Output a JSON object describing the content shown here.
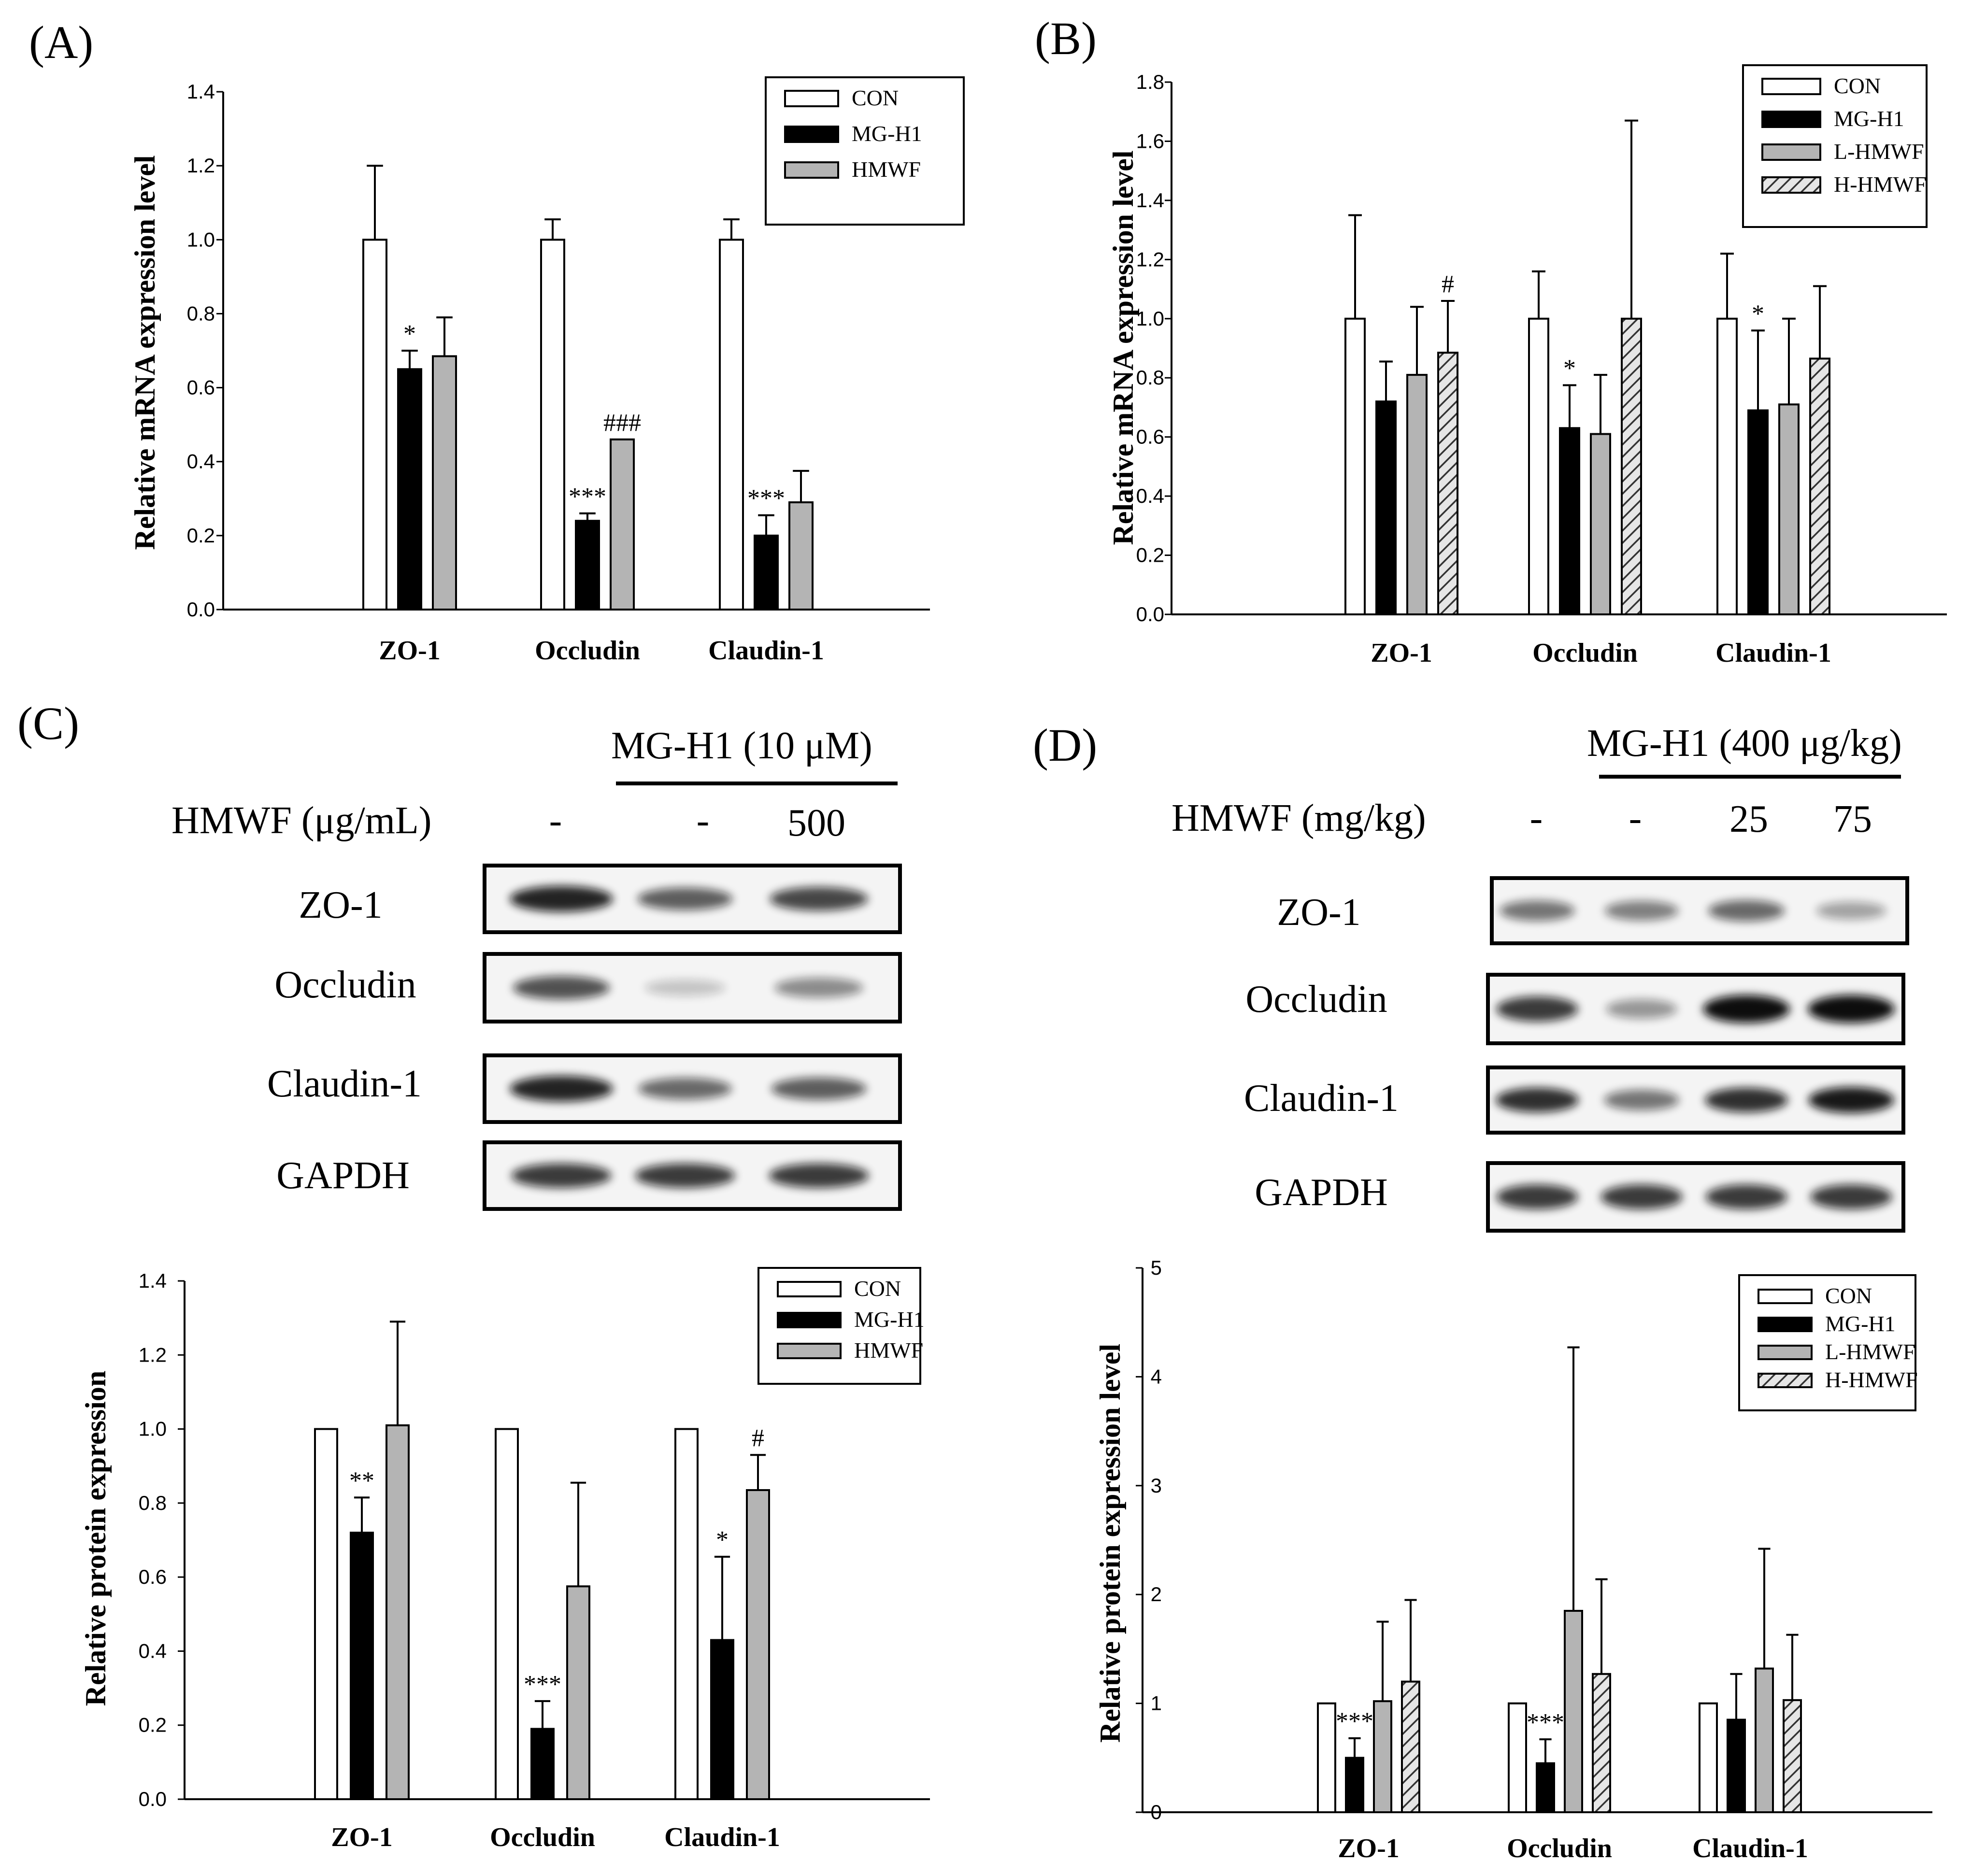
{
  "chart_data": [
    {
      "panel": "(A)",
      "type": "bar",
      "title": "",
      "xlabel": "",
      "ylabel": "Relative mRNA expression level",
      "ylim": [
        0,
        1.4
      ],
      "yticks": [
        "0.0",
        "0.2",
        "0.4",
        "0.6",
        "0.8",
        "1.0",
        "1.2",
        "1.4"
      ],
      "categories": [
        "ZO-1",
        "Occludin",
        "Claudin-1"
      ],
      "legend_position": "top-right",
      "series": [
        {
          "name": "CON",
          "fill": "white",
          "values": [
            1.0,
            1.0,
            1.0
          ],
          "errors": [
            0.2,
            0.055,
            0.055
          ],
          "annotations": [
            "",
            "",
            ""
          ]
        },
        {
          "name": "MG-H1",
          "fill": "black",
          "values": [
            0.65,
            0.24,
            0.2
          ],
          "errors": [
            0.05,
            0.02,
            0.055
          ],
          "annotations": [
            "*",
            "***",
            "***"
          ]
        },
        {
          "name": "HMWF",
          "fill": "gray",
          "values": [
            0.685,
            0.46,
            0.29
          ],
          "errors": [
            0.105,
            0.0,
            0.085
          ],
          "annotations": [
            "",
            "###",
            ""
          ]
        }
      ]
    },
    {
      "panel": "(B)",
      "type": "bar",
      "title": "",
      "xlabel": "",
      "ylabel": "Relative mRNA expression level",
      "ylim": [
        0,
        1.8
      ],
      "yticks": [
        "0.0",
        "0.2",
        "0.4",
        "0.6",
        "0.8",
        "1.0",
        "1.2",
        "1.4",
        "1.6",
        "1.8"
      ],
      "categories": [
        "ZO-1",
        "Occludin",
        "Claudin-1"
      ],
      "legend_position": "top-right",
      "series": [
        {
          "name": "CON",
          "fill": "white",
          "values": [
            1.0,
            1.0,
            1.0
          ],
          "errors": [
            0.35,
            0.16,
            0.22
          ],
          "annotations": [
            "",
            "",
            ""
          ]
        },
        {
          "name": "MG-H1",
          "fill": "black",
          "values": [
            0.72,
            0.63,
            0.69
          ],
          "errors": [
            0.135,
            0.145,
            0.27
          ],
          "annotations": [
            "",
            "*",
            "*"
          ]
        },
        {
          "name": "L-HMWF",
          "fill": "gray",
          "values": [
            0.81,
            0.61,
            0.71
          ],
          "errors": [
            0.23,
            0.2,
            0.29
          ],
          "annotations": [
            "",
            "",
            ""
          ]
        },
        {
          "name": "H-HMWF",
          "fill": "hatch",
          "values": [
            0.885,
            1.0,
            0.865
          ],
          "errors": [
            0.175,
            0.67,
            0.245
          ],
          "annotations": [
            "#",
            "",
            ""
          ]
        }
      ]
    },
    {
      "panel": "(C)",
      "type": "bar",
      "title": "",
      "xlabel": "",
      "ylabel": "Relative protein expression",
      "ylim": [
        0,
        1.4
      ],
      "yticks": [
        "0.0",
        "0.2",
        "0.4",
        "0.6",
        "0.8",
        "1.0",
        "1.2",
        "1.4"
      ],
      "categories": [
        "ZO-1",
        "Occludin",
        "Claudin-1"
      ],
      "legend_position": "top-right",
      "series": [
        {
          "name": "CON",
          "fill": "white",
          "values": [
            1.0,
            1.0,
            1.0
          ],
          "errors": [
            0,
            0,
            0
          ],
          "annotations": [
            "",
            "",
            ""
          ]
        },
        {
          "name": "MG-H1",
          "fill": "black",
          "values": [
            0.72,
            0.19,
            0.43
          ],
          "errors": [
            0.095,
            0.075,
            0.225
          ],
          "annotations": [
            "**",
            "***",
            "*"
          ]
        },
        {
          "name": "HMWF",
          "fill": "gray",
          "values": [
            1.01,
            0.575,
            0.835
          ],
          "errors": [
            0.28,
            0.28,
            0.095
          ],
          "annotations": [
            "",
            "",
            "#"
          ]
        }
      ]
    },
    {
      "panel": "(D)",
      "type": "bar",
      "title": "",
      "xlabel": "",
      "ylabel": "Relative protein expression level",
      "ylim": [
        0,
        5
      ],
      "yticks": [
        "0",
        "1",
        "2",
        "3",
        "4",
        "5"
      ],
      "categories": [
        "ZO-1",
        "Occludin",
        "Claudin-1"
      ],
      "legend_position": "top-right",
      "series": [
        {
          "name": "CON",
          "fill": "white",
          "values": [
            1.0,
            1.0,
            1.0
          ],
          "errors": [
            0,
            0,
            0
          ],
          "annotations": [
            "",
            "",
            ""
          ]
        },
        {
          "name": "MG-H1",
          "fill": "black",
          "values": [
            0.5,
            0.45,
            0.85
          ],
          "errors": [
            0.18,
            0.22,
            0.42
          ],
          "annotations": [
            "***",
            "***",
            ""
          ]
        },
        {
          "name": "L-HMWF",
          "fill": "gray",
          "values": [
            1.02,
            1.85,
            1.32
          ],
          "errors": [
            0.73,
            2.42,
            1.1
          ],
          "annotations": [
            "",
            "",
            ""
          ]
        },
        {
          "name": "H-HMWF",
          "fill": "hatch",
          "values": [
            1.2,
            1.27,
            1.03
          ],
          "errors": [
            0.75,
            0.87,
            0.6
          ],
          "annotations": [
            "",
            "",
            ""
          ]
        }
      ]
    }
  ],
  "blots": {
    "C": {
      "label": "(C)",
      "treatment": "MG-H1 (10 μM)",
      "dose_label": "HMWF (μg/mL)",
      "doses": [
        "-",
        "-",
        "500"
      ],
      "rows": [
        "ZO-1",
        "Occludin",
        "Claudin-1",
        "GAPDH"
      ],
      "intensities": [
        [
          0.9,
          0.65,
          0.75
        ],
        [
          0.7,
          0.2,
          0.45
        ],
        [
          0.9,
          0.6,
          0.65
        ],
        [
          0.8,
          0.8,
          0.8
        ]
      ]
    },
    "D": {
      "label": "(D)",
      "treatment": "MG-H1 (400 μg/kg)",
      "dose_label": "HMWF (mg/kg)",
      "doses": [
        "-",
        "-",
        "25",
        "75"
      ],
      "rows": [
        "ZO-1",
        "Occludin",
        "Claudin-1",
        "GAPDH"
      ],
      "intensities": [
        [
          0.55,
          0.5,
          0.6,
          0.35
        ],
        [
          0.8,
          0.4,
          1.0,
          1.0
        ],
        [
          0.85,
          0.55,
          0.85,
          0.95
        ],
        [
          0.8,
          0.8,
          0.8,
          0.8
        ]
      ]
    }
  },
  "colors": {
    "black": "#000000",
    "gray": "#b4b4b4",
    "white": "#ffffff"
  }
}
